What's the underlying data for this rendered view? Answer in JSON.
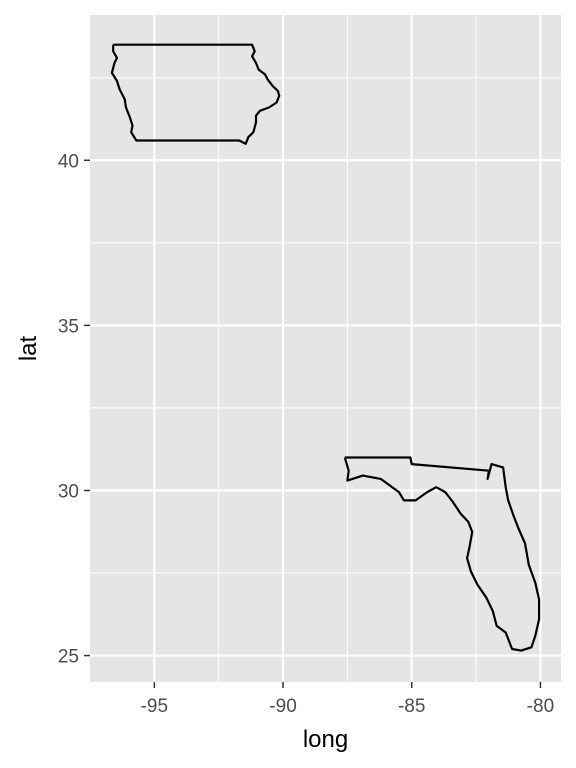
{
  "chart_data": {
    "type": "map-outline",
    "xlabel": "long",
    "ylabel": "lat",
    "xlim": [
      -97.5,
      -79.2
    ],
    "ylim": [
      24.2,
      44.4
    ],
    "x_ticks": [
      -95,
      -90,
      -85,
      -80
    ],
    "y_ticks": [
      25,
      30,
      35,
      40
    ],
    "x_tick_labels": [
      "-95",
      "-90",
      "-85",
      "-80"
    ],
    "y_tick_labels": [
      "25",
      "30",
      "35",
      "40"
    ],
    "grid": true,
    "x_minor": [
      -92.5,
      -87.5,
      -82.5
    ],
    "y_minor": [
      27.5,
      32.5,
      37.5,
      42.5
    ],
    "colors": {
      "panel": "#e5e5e5",
      "grid": "#ffffff",
      "line": "#000000",
      "tick_text": "#4d4d4d",
      "axis_text": "#000000"
    },
    "series": [
      {
        "points": [
          [
            -96.6,
            43.5
          ],
          [
            -91.2,
            43.5
          ],
          [
            -91.1,
            43.3
          ],
          [
            -91.2,
            43.15
          ],
          [
            -91.05,
            42.95
          ],
          [
            -90.95,
            42.75
          ],
          [
            -90.7,
            42.6
          ],
          [
            -90.6,
            42.45
          ],
          [
            -90.4,
            42.25
          ],
          [
            -90.2,
            42.1
          ],
          [
            -90.15,
            41.95
          ],
          [
            -90.25,
            41.75
          ],
          [
            -90.55,
            41.6
          ],
          [
            -90.9,
            41.5
          ],
          [
            -91.05,
            41.35
          ],
          [
            -91.05,
            41.15
          ],
          [
            -91.15,
            40.85
          ],
          [
            -91.35,
            40.7
          ],
          [
            -91.45,
            40.5
          ],
          [
            -91.7,
            40.6
          ],
          [
            -95.7,
            40.6
          ],
          [
            -95.9,
            40.85
          ],
          [
            -95.85,
            41.05
          ],
          [
            -95.95,
            41.3
          ],
          [
            -96.1,
            41.6
          ],
          [
            -96.15,
            41.85
          ],
          [
            -96.35,
            42.15
          ],
          [
            -96.45,
            42.4
          ],
          [
            -96.65,
            42.65
          ],
          [
            -96.55,
            42.95
          ],
          [
            -96.45,
            43.1
          ],
          [
            -96.6,
            43.3
          ],
          [
            -96.6,
            43.5
          ]
        ]
      },
      {
        "points": [
          [
            -87.6,
            31.0
          ],
          [
            -85.05,
            31.0
          ],
          [
            -85.0,
            30.8
          ],
          [
            -82.0,
            30.6
          ],
          [
            -82.05,
            30.35
          ],
          [
            -81.9,
            30.8
          ],
          [
            -81.45,
            30.7
          ],
          [
            -81.35,
            30.1
          ],
          [
            -81.25,
            29.7
          ],
          [
            -81.05,
            29.25
          ],
          [
            -80.85,
            28.85
          ],
          [
            -80.6,
            28.4
          ],
          [
            -80.45,
            27.75
          ],
          [
            -80.2,
            27.2
          ],
          [
            -80.05,
            26.7
          ],
          [
            -80.05,
            26.1
          ],
          [
            -80.2,
            25.6
          ],
          [
            -80.35,
            25.25
          ],
          [
            -80.75,
            25.15
          ],
          [
            -81.1,
            25.2
          ],
          [
            -81.2,
            25.4
          ],
          [
            -81.35,
            25.7
          ],
          [
            -81.7,
            25.9
          ],
          [
            -81.85,
            26.35
          ],
          [
            -82.1,
            26.75
          ],
          [
            -82.45,
            27.15
          ],
          [
            -82.7,
            27.55
          ],
          [
            -82.85,
            27.95
          ],
          [
            -82.75,
            28.3
          ],
          [
            -82.65,
            28.75
          ],
          [
            -82.8,
            29.05
          ],
          [
            -83.1,
            29.3
          ],
          [
            -83.4,
            29.65
          ],
          [
            -83.7,
            29.95
          ],
          [
            -84.05,
            30.1
          ],
          [
            -84.4,
            29.95
          ],
          [
            -84.85,
            29.7
          ],
          [
            -85.3,
            29.7
          ],
          [
            -85.5,
            29.95
          ],
          [
            -86.2,
            30.35
          ],
          [
            -86.9,
            30.45
          ],
          [
            -87.5,
            30.3
          ],
          [
            -87.45,
            30.6
          ],
          [
            -87.6,
            31.0
          ]
        ]
      }
    ]
  }
}
